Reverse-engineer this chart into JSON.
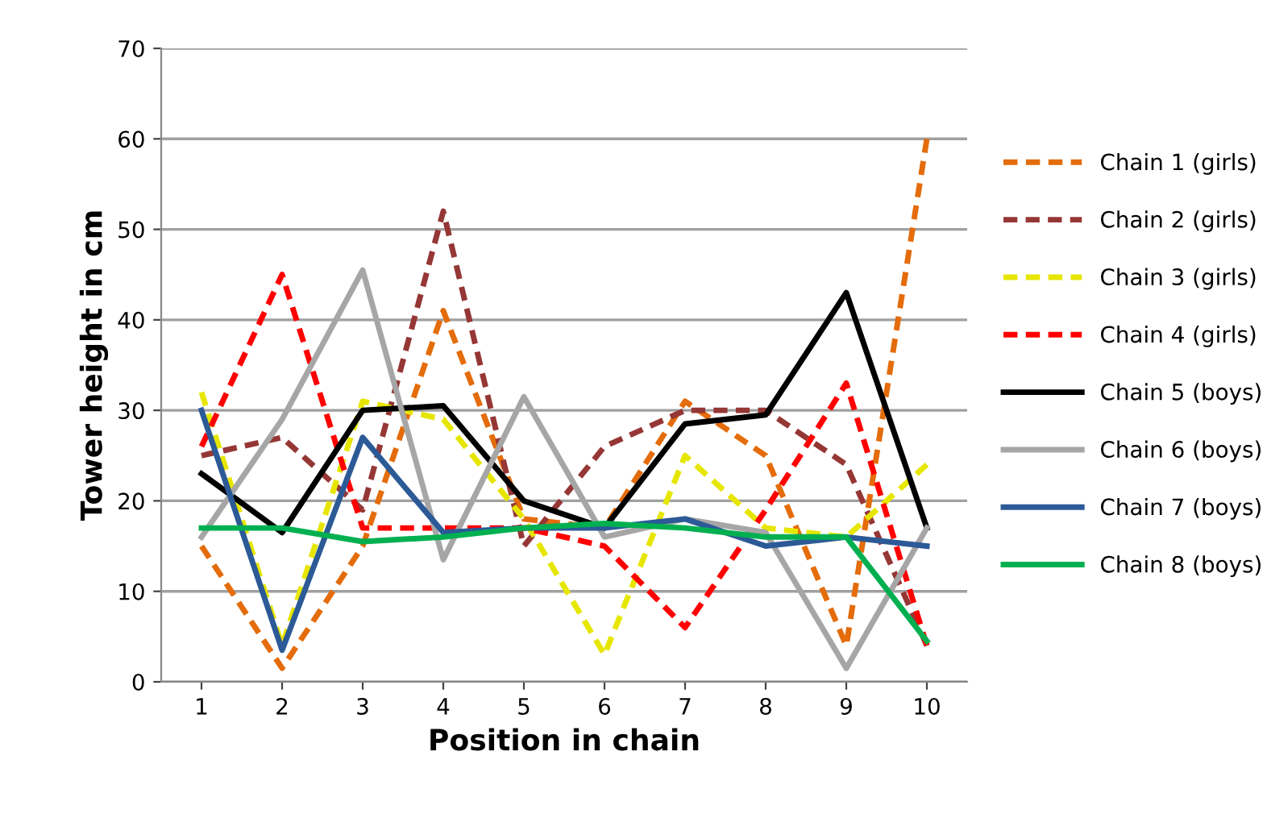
{
  "chart_data": {
    "type": "line",
    "xlabel": "Position in chain",
    "ylabel": "Tower height in cm",
    "categories": [
      "1",
      "2",
      "3",
      "4",
      "5",
      "6",
      "7",
      "8",
      "9",
      "10"
    ],
    "ylim": [
      0,
      70
    ],
    "yticks": [
      0,
      10,
      20,
      30,
      40,
      50,
      60,
      70
    ],
    "grid": "y",
    "legend": "right",
    "marker": "none",
    "series": [
      {
        "name": "Chain 1 (girls)",
        "color": "#e46c0a",
        "line_style": "dashed",
        "values": [
          15,
          1.5,
          15,
          41,
          18,
          17,
          31,
          25,
          4,
          60
        ]
      },
      {
        "name": "Chain 2 (girls)",
        "color": "#953735",
        "line_style": "dashed",
        "values": [
          25,
          27,
          19,
          52,
          15,
          26,
          30,
          30,
          24,
          4
        ]
      },
      {
        "name": "Chain 3 (girls)",
        "color": "#e6e600",
        "line_style": "dashed",
        "values": [
          32,
          4,
          31,
          29,
          18,
          3,
          25,
          17,
          16,
          24
        ]
      },
      {
        "name": "Chain 4 (girls)",
        "color": "#ff0000",
        "line_style": "dashed",
        "values": [
          26,
          45,
          17,
          17,
          17,
          15,
          6,
          19,
          33,
          4
        ]
      },
      {
        "name": "Chain 5 (boys)",
        "color": "#000000",
        "line_style": "solid",
        "values": [
          23,
          16.5,
          30,
          30.5,
          20,
          17,
          28.5,
          29.5,
          43,
          17
        ]
      },
      {
        "name": "Chain 6 (boys)",
        "color": "#a6a6a6",
        "line_style": "solid",
        "values": [
          16,
          29,
          45.5,
          13.5,
          31.5,
          16,
          18,
          16.5,
          1.5,
          17
        ]
      },
      {
        "name": "Chain 7 (boys)",
        "color": "#2c5a97",
        "line_style": "solid",
        "values": [
          30,
          3.5,
          27,
          16.5,
          17,
          17,
          18,
          15,
          16,
          15
        ]
      },
      {
        "name": "Chain 8 (boys)",
        "color": "#00b050",
        "line_style": "solid",
        "values": [
          17,
          17,
          15.5,
          16,
          17,
          17.5,
          17,
          16,
          16,
          4.5
        ]
      }
    ]
  }
}
